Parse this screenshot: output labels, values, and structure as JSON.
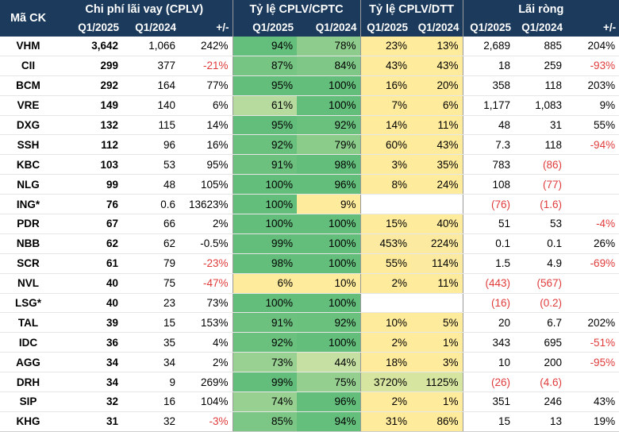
{
  "headers": {
    "ticker": "Mã CK",
    "group_interest": "Chi phí lãi vay (CPLV)",
    "group_ratio_pretax": "Tỷ lệ CPLV/CPTC",
    "group_ratio_revenue": "Tỷ lệ CPLV/DTT",
    "group_net_income": "Lãi ròng",
    "sub_q1_2025": "Q1/2025",
    "sub_q1_2024": "Q1/2024",
    "sub_change": "+/-"
  },
  "colors": {
    "header_bg": "#1b3a5c",
    "negative_text": "#e03b3b",
    "green_heat_range": [
      "#c6e0a4",
      "#63be7b"
    ],
    "yellow_low": "#ffeb9c",
    "yellow_high": "#d6e6a0"
  },
  "rows": [
    {
      "ticker": "VHM",
      "int_q1_2025": "3,642",
      "int_q1_2024": "1,066",
      "int_chg": "242%",
      "int_chg_neg": false,
      "cptc_q1_2025": "94%",
      "cptc_q1_2025_fill": 0.94,
      "cptc_q1_2024": "78%",
      "cptc_q1_2024_fill": 0.78,
      "dtt_q1_2025": "23%",
      "dtt_q1_2025_fill": 0.23,
      "dtt_q1_2024": "13%",
      "dtt_q1_2024_fill": 0.13,
      "ni_q1_2025": "2,689",
      "ni_q1_2025_neg": false,
      "ni_q1_2024": "885",
      "ni_q1_2024_neg": false,
      "ni_chg": "204%",
      "ni_chg_neg": false
    },
    {
      "ticker": "CII",
      "int_q1_2025": "299",
      "int_q1_2024": "377",
      "int_chg": "-21%",
      "int_chg_neg": true,
      "cptc_q1_2025": "87%",
      "cptc_q1_2025_fill": 0.87,
      "cptc_q1_2024": "84%",
      "cptc_q1_2024_fill": 0.84,
      "dtt_q1_2025": "43%",
      "dtt_q1_2025_fill": 0.43,
      "dtt_q1_2024": "43%",
      "dtt_q1_2024_fill": 0.43,
      "ni_q1_2025": "18",
      "ni_q1_2025_neg": false,
      "ni_q1_2024": "259",
      "ni_q1_2024_neg": false,
      "ni_chg": "-93%",
      "ni_chg_neg": true
    },
    {
      "ticker": "BCM",
      "int_q1_2025": "292",
      "int_q1_2024": "164",
      "int_chg": "77%",
      "int_chg_neg": false,
      "cptc_q1_2025": "95%",
      "cptc_q1_2025_fill": 0.95,
      "cptc_q1_2024": "100%",
      "cptc_q1_2024_fill": 1.0,
      "dtt_q1_2025": "16%",
      "dtt_q1_2025_fill": 0.16,
      "dtt_q1_2024": "20%",
      "dtt_q1_2024_fill": 0.2,
      "ni_q1_2025": "358",
      "ni_q1_2025_neg": false,
      "ni_q1_2024": "118",
      "ni_q1_2024_neg": false,
      "ni_chg": "203%",
      "ni_chg_neg": false
    },
    {
      "ticker": "VRE",
      "int_q1_2025": "149",
      "int_q1_2024": "140",
      "int_chg": "6%",
      "int_chg_neg": false,
      "cptc_q1_2025": "61%",
      "cptc_q1_2025_fill": 0.61,
      "cptc_q1_2024": "100%",
      "cptc_q1_2024_fill": 1.0,
      "dtt_q1_2025": "7%",
      "dtt_q1_2025_fill": 0.07,
      "dtt_q1_2024": "6%",
      "dtt_q1_2024_fill": 0.06,
      "ni_q1_2025": "1,177",
      "ni_q1_2025_neg": false,
      "ni_q1_2024": "1,083",
      "ni_q1_2024_neg": false,
      "ni_chg": "9%",
      "ni_chg_neg": false
    },
    {
      "ticker": "DXG",
      "int_q1_2025": "132",
      "int_q1_2024": "115",
      "int_chg": "14%",
      "int_chg_neg": false,
      "cptc_q1_2025": "95%",
      "cptc_q1_2025_fill": 0.95,
      "cptc_q1_2024": "92%",
      "cptc_q1_2024_fill": 0.92,
      "dtt_q1_2025": "14%",
      "dtt_q1_2025_fill": 0.14,
      "dtt_q1_2024": "11%",
      "dtt_q1_2024_fill": 0.11,
      "ni_q1_2025": "48",
      "ni_q1_2025_neg": false,
      "ni_q1_2024": "31",
      "ni_q1_2024_neg": false,
      "ni_chg": "55%",
      "ni_chg_neg": false
    },
    {
      "ticker": "SSH",
      "int_q1_2025": "112",
      "int_q1_2024": "96",
      "int_chg": "16%",
      "int_chg_neg": false,
      "cptc_q1_2025": "92%",
      "cptc_q1_2025_fill": 0.92,
      "cptc_q1_2024": "79%",
      "cptc_q1_2024_fill": 0.79,
      "dtt_q1_2025": "60%",
      "dtt_q1_2025_fill": 0.6,
      "dtt_q1_2024": "43%",
      "dtt_q1_2024_fill": 0.43,
      "ni_q1_2025": "7.3",
      "ni_q1_2025_neg": false,
      "ni_q1_2024": "118",
      "ni_q1_2024_neg": false,
      "ni_chg": "-94%",
      "ni_chg_neg": true
    },
    {
      "ticker": "KBC",
      "int_q1_2025": "103",
      "int_q1_2024": "53",
      "int_chg": "95%",
      "int_chg_neg": false,
      "cptc_q1_2025": "91%",
      "cptc_q1_2025_fill": 0.91,
      "cptc_q1_2024": "98%",
      "cptc_q1_2024_fill": 0.98,
      "dtt_q1_2025": "3%",
      "dtt_q1_2025_fill": 0.03,
      "dtt_q1_2024": "35%",
      "dtt_q1_2024_fill": 0.35,
      "ni_q1_2025": "783",
      "ni_q1_2025_neg": false,
      "ni_q1_2024": "(86)",
      "ni_q1_2024_neg": true,
      "ni_chg": "",
      "ni_chg_neg": false
    },
    {
      "ticker": "NLG",
      "int_q1_2025": "99",
      "int_q1_2024": "48",
      "int_chg": "105%",
      "int_chg_neg": false,
      "cptc_q1_2025": "100%",
      "cptc_q1_2025_fill": 1.0,
      "cptc_q1_2024": "96%",
      "cptc_q1_2024_fill": 0.96,
      "dtt_q1_2025": "8%",
      "dtt_q1_2025_fill": 0.08,
      "dtt_q1_2024": "24%",
      "dtt_q1_2024_fill": 0.24,
      "ni_q1_2025": "108",
      "ni_q1_2025_neg": false,
      "ni_q1_2024": "(77)",
      "ni_q1_2024_neg": true,
      "ni_chg": "",
      "ni_chg_neg": false
    },
    {
      "ticker": "ING*",
      "int_q1_2025": "76",
      "int_q1_2024": "0.6",
      "int_chg": "13623%",
      "int_chg_neg": false,
      "cptc_q1_2025": "100%",
      "cptc_q1_2025_fill": 1.0,
      "cptc_q1_2024": "9%",
      "cptc_q1_2024_fill": 0.09,
      "dtt_q1_2025": "",
      "dtt_q1_2025_fill": null,
      "dtt_q1_2024": "",
      "dtt_q1_2024_fill": null,
      "ni_q1_2025": "(76)",
      "ni_q1_2025_neg": true,
      "ni_q1_2024": "(1.6)",
      "ni_q1_2024_neg": true,
      "ni_chg": "",
      "ni_chg_neg": false
    },
    {
      "ticker": "PDR",
      "int_q1_2025": "67",
      "int_q1_2024": "66",
      "int_chg": "2%",
      "int_chg_neg": false,
      "cptc_q1_2025": "100%",
      "cptc_q1_2025_fill": 1.0,
      "cptc_q1_2024": "100%",
      "cptc_q1_2024_fill": 1.0,
      "dtt_q1_2025": "15%",
      "dtt_q1_2025_fill": 0.15,
      "dtt_q1_2024": "40%",
      "dtt_q1_2024_fill": 0.4,
      "ni_q1_2025": "51",
      "ni_q1_2025_neg": false,
      "ni_q1_2024": "53",
      "ni_q1_2024_neg": false,
      "ni_chg": "-4%",
      "ni_chg_neg": true
    },
    {
      "ticker": "NBB",
      "int_q1_2025": "62",
      "int_q1_2024": "62",
      "int_chg": "-0.5%",
      "int_chg_neg": false,
      "cptc_q1_2025": "99%",
      "cptc_q1_2025_fill": 0.99,
      "cptc_q1_2024": "100%",
      "cptc_q1_2024_fill": 1.0,
      "dtt_q1_2025": "453%",
      "dtt_q1_2025_fill": 4.53,
      "dtt_q1_2024": "224%",
      "dtt_q1_2024_fill": 2.24,
      "ni_q1_2025": "0.1",
      "ni_q1_2025_neg": false,
      "ni_q1_2024": "0.1",
      "ni_q1_2024_neg": false,
      "ni_chg": "26%",
      "ni_chg_neg": false
    },
    {
      "ticker": "SCR",
      "int_q1_2025": "61",
      "int_q1_2024": "79",
      "int_chg": "-23%",
      "int_chg_neg": true,
      "cptc_q1_2025": "98%",
      "cptc_q1_2025_fill": 0.98,
      "cptc_q1_2024": "100%",
      "cptc_q1_2024_fill": 1.0,
      "dtt_q1_2025": "55%",
      "dtt_q1_2025_fill": 0.55,
      "dtt_q1_2024": "114%",
      "dtt_q1_2024_fill": 1.14,
      "ni_q1_2025": "1.5",
      "ni_q1_2025_neg": false,
      "ni_q1_2024": "4.9",
      "ni_q1_2024_neg": false,
      "ni_chg": "-69%",
      "ni_chg_neg": true
    },
    {
      "ticker": "NVL",
      "int_q1_2025": "40",
      "int_q1_2024": "75",
      "int_chg": "-47%",
      "int_chg_neg": true,
      "cptc_q1_2025": "6%",
      "cptc_q1_2025_fill": 0.06,
      "cptc_q1_2024": "10%",
      "cptc_q1_2024_fill": 0.1,
      "dtt_q1_2025": "2%",
      "dtt_q1_2025_fill": 0.02,
      "dtt_q1_2024": "11%",
      "dtt_q1_2024_fill": 0.11,
      "ni_q1_2025": "(443)",
      "ni_q1_2025_neg": true,
      "ni_q1_2024": "(567)",
      "ni_q1_2024_neg": true,
      "ni_chg": "",
      "ni_chg_neg": false
    },
    {
      "ticker": "LSG*",
      "int_q1_2025": "40",
      "int_q1_2024": "23",
      "int_chg": "73%",
      "int_chg_neg": false,
      "cptc_q1_2025": "100%",
      "cptc_q1_2025_fill": 1.0,
      "cptc_q1_2024": "100%",
      "cptc_q1_2024_fill": 1.0,
      "dtt_q1_2025": "",
      "dtt_q1_2025_fill": null,
      "dtt_q1_2024": "",
      "dtt_q1_2024_fill": null,
      "ni_q1_2025": "(16)",
      "ni_q1_2025_neg": true,
      "ni_q1_2024": "(0.2)",
      "ni_q1_2024_neg": true,
      "ni_chg": "",
      "ni_chg_neg": false
    },
    {
      "ticker": "TAL",
      "int_q1_2025": "39",
      "int_q1_2024": "15",
      "int_chg": "153%",
      "int_chg_neg": false,
      "cptc_q1_2025": "91%",
      "cptc_q1_2025_fill": 0.91,
      "cptc_q1_2024": "92%",
      "cptc_q1_2024_fill": 0.92,
      "dtt_q1_2025": "10%",
      "dtt_q1_2025_fill": 0.1,
      "dtt_q1_2024": "5%",
      "dtt_q1_2024_fill": 0.05,
      "ni_q1_2025": "20",
      "ni_q1_2025_neg": false,
      "ni_q1_2024": "6.7",
      "ni_q1_2024_neg": false,
      "ni_chg": "202%",
      "ni_chg_neg": false
    },
    {
      "ticker": "IDC",
      "int_q1_2025": "36",
      "int_q1_2024": "35",
      "int_chg": "4%",
      "int_chg_neg": false,
      "cptc_q1_2025": "92%",
      "cptc_q1_2025_fill": 0.92,
      "cptc_q1_2024": "100%",
      "cptc_q1_2024_fill": 1.0,
      "dtt_q1_2025": "2%",
      "dtt_q1_2025_fill": 0.02,
      "dtt_q1_2024": "1%",
      "dtt_q1_2024_fill": 0.01,
      "ni_q1_2025": "343",
      "ni_q1_2025_neg": false,
      "ni_q1_2024": "695",
      "ni_q1_2024_neg": false,
      "ni_chg": "-51%",
      "ni_chg_neg": true
    },
    {
      "ticker": "AGG",
      "int_q1_2025": "34",
      "int_q1_2024": "34",
      "int_chg": "2%",
      "int_chg_neg": false,
      "cptc_q1_2025": "73%",
      "cptc_q1_2025_fill": 0.73,
      "cptc_q1_2024": "44%",
      "cptc_q1_2024_fill": 0.44,
      "dtt_q1_2025": "18%",
      "dtt_q1_2025_fill": 0.18,
      "dtt_q1_2024": "3%",
      "dtt_q1_2024_fill": 0.03,
      "ni_q1_2025": "10",
      "ni_q1_2025_neg": false,
      "ni_q1_2024": "200",
      "ni_q1_2024_neg": false,
      "ni_chg": "-95%",
      "ni_chg_neg": true
    },
    {
      "ticker": "DRH",
      "int_q1_2025": "34",
      "int_q1_2024": "9",
      "int_chg": "269%",
      "int_chg_neg": false,
      "cptc_q1_2025": "99%",
      "cptc_q1_2025_fill": 0.99,
      "cptc_q1_2024": "75%",
      "cptc_q1_2024_fill": 0.75,
      "dtt_q1_2025": "3720%",
      "dtt_q1_2025_fill": 37.2,
      "dtt_q1_2024": "1125%",
      "dtt_q1_2024_fill": 11.25,
      "ni_q1_2025": "(26)",
      "ni_q1_2025_neg": true,
      "ni_q1_2024": "(4.6)",
      "ni_q1_2024_neg": true,
      "ni_chg": "",
      "ni_chg_neg": false
    },
    {
      "ticker": "SIP",
      "int_q1_2025": "32",
      "int_q1_2024": "16",
      "int_chg": "104%",
      "int_chg_neg": false,
      "cptc_q1_2025": "74%",
      "cptc_q1_2025_fill": 0.74,
      "cptc_q1_2024": "96%",
      "cptc_q1_2024_fill": 0.96,
      "dtt_q1_2025": "2%",
      "dtt_q1_2025_fill": 0.02,
      "dtt_q1_2024": "1%",
      "dtt_q1_2024_fill": 0.01,
      "ni_q1_2025": "351",
      "ni_q1_2025_neg": false,
      "ni_q1_2024": "246",
      "ni_q1_2024_neg": false,
      "ni_chg": "43%",
      "ni_chg_neg": false
    },
    {
      "ticker": "KHG",
      "int_q1_2025": "31",
      "int_q1_2024": "32",
      "int_chg": "-3%",
      "int_chg_neg": true,
      "cptc_q1_2025": "85%",
      "cptc_q1_2025_fill": 0.85,
      "cptc_q1_2024": "94%",
      "cptc_q1_2024_fill": 0.94,
      "dtt_q1_2025": "31%",
      "dtt_q1_2025_fill": 0.31,
      "dtt_q1_2024": "86%",
      "dtt_q1_2024_fill": 0.86,
      "ni_q1_2025": "15",
      "ni_q1_2025_neg": false,
      "ni_q1_2024": "13",
      "ni_q1_2024_neg": false,
      "ni_chg": "19%",
      "ni_chg_neg": false
    }
  ]
}
